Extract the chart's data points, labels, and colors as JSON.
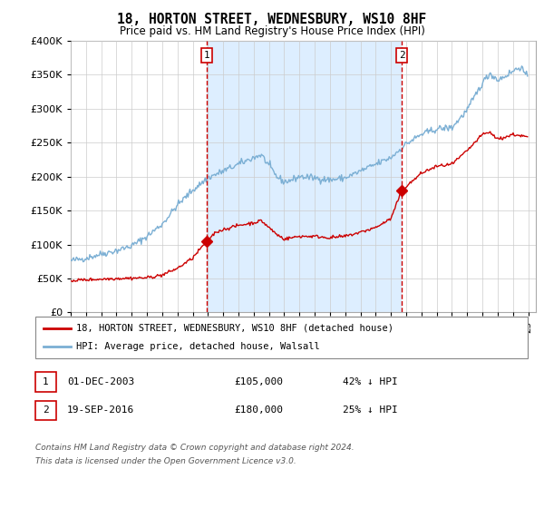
{
  "title": "18, HORTON STREET, WEDNESBURY, WS10 8HF",
  "subtitle": "Price paid vs. HM Land Registry's House Price Index (HPI)",
  "legend_entry1": "18, HORTON STREET, WEDNESBURY, WS10 8HF (detached house)",
  "legend_entry2": "HPI: Average price, detached house, Walsall",
  "sale1_date": "01-DEC-2003",
  "sale1_price": 105000,
  "sale1_label": "42% ↓ HPI",
  "sale2_date": "19-SEP-2016",
  "sale2_price": 180000,
  "sale2_label": "25% ↓ HPI",
  "footnote1": "Contains HM Land Registry data © Crown copyright and database right 2024.",
  "footnote2": "This data is licensed under the Open Government Licence v3.0.",
  "hpi_color": "#7bafd4",
  "price_color": "#cc0000",
  "vline_color": "#cc0000",
  "shade_color": "#ddeeff",
  "bg_color": "#ffffff",
  "grid_color": "#cccccc",
  "ylim": [
    0,
    400000
  ],
  "xlim_start": 1995.0,
  "xlim_end": 2025.5,
  "sale1_x": 2003.92,
  "sale2_x": 2016.72
}
